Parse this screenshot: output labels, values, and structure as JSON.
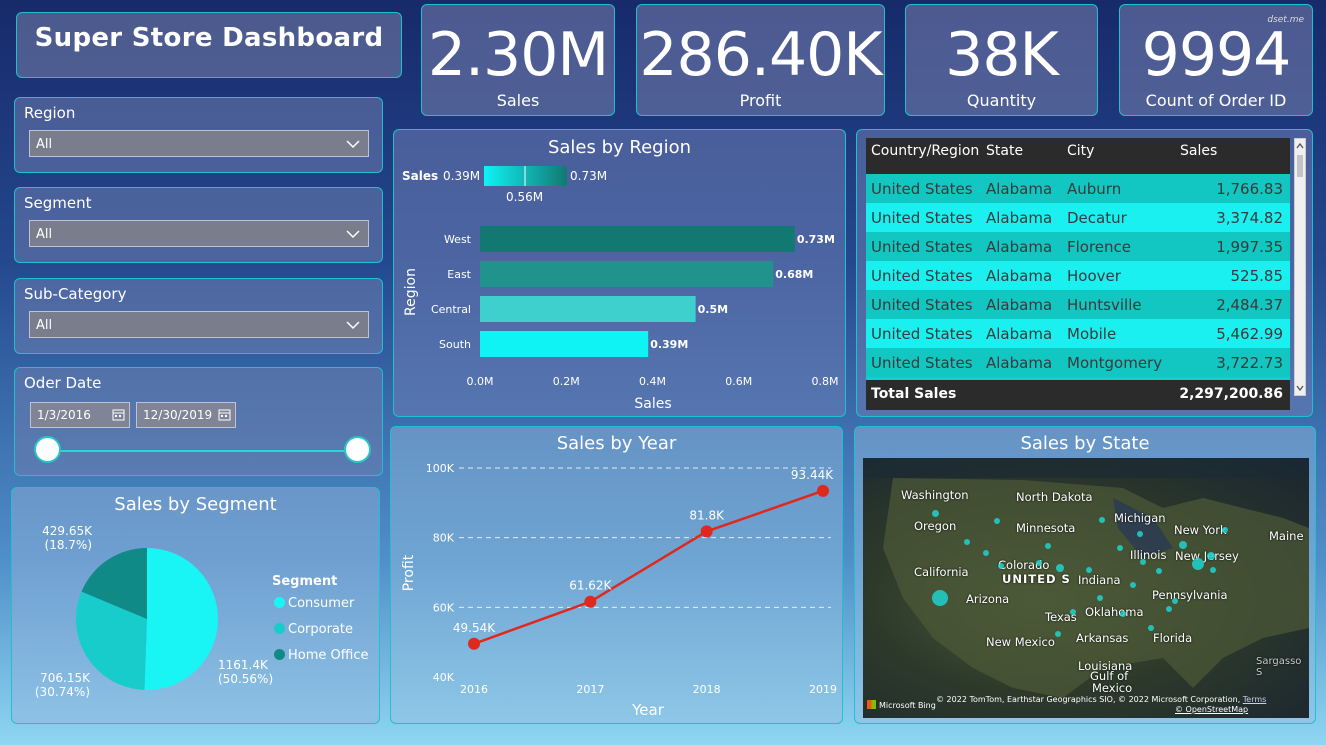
{
  "title": "Super Store Dashboard",
  "watermark": "dset.me",
  "kpis": [
    {
      "value": "2.30M",
      "label": "Sales"
    },
    {
      "value": "286.40K",
      "label": "Profit"
    },
    {
      "value": "38K",
      "label": "Quantity"
    },
    {
      "value": "9994",
      "label": "Count of Order ID"
    }
  ],
  "slicers": {
    "region": {
      "label": "Region",
      "value": "All"
    },
    "segment": {
      "label": "Segment",
      "value": "All"
    },
    "subcategory": {
      "label": "Sub-Category",
      "value": "All"
    },
    "order_date": {
      "label": "Oder Date",
      "start": "1/3/2016",
      "end": "12/30/2019"
    }
  },
  "colors": {
    "accent": "#1fc0cf",
    "line": "#e0281c",
    "table_row_a": "#12c6c1",
    "table_row_b": "#1af0f0"
  },
  "chart_data": [
    {
      "type": "bar",
      "orientation": "horizontal",
      "title": "Sales by Region",
      "categories": [
        "West",
        "East",
        "Central",
        "South"
      ],
      "values": [
        0.73,
        0.68,
        0.5,
        0.39
      ],
      "data_labels": [
        "0.73M",
        "0.68M",
        "0.5M",
        "0.39M"
      ],
      "colors": [
        "#127872",
        "#22928d",
        "#3ed0cc",
        "#0ff3f5"
      ],
      "xlabel": "Sales",
      "ylabel": "Region",
      "xlim": [
        0,
        0.8
      ],
      "xticks": [
        "0.0M",
        "0.2M",
        "0.4M",
        "0.6M",
        "0.8M"
      ],
      "gradient_legend": {
        "label": "Sales",
        "min": "0.39M",
        "max": "0.73M",
        "mid": "0.56M"
      }
    },
    {
      "type": "line",
      "title": "Sales by Year",
      "x": [
        2016,
        2017,
        2018,
        2019
      ],
      "values": [
        49.54,
        61.62,
        81.8,
        93.44
      ],
      "data_labels": [
        "49.54K",
        "61.62K",
        "81.8K",
        "93.44K"
      ],
      "xlabel": "Year",
      "ylabel": "Profit",
      "ylim": [
        40,
        100
      ],
      "yticks": [
        "40K",
        "60K",
        "80K",
        "100K"
      ],
      "grid": true
    },
    {
      "type": "pie",
      "title": "Sales by Segment",
      "categories": [
        "Consumer",
        "Corporate",
        "Home Office"
      ],
      "values": [
        1161.4,
        706.15,
        429.65
      ],
      "data_labels": [
        {
          "value": "1161.4K",
          "pct": "(50.56%)"
        },
        {
          "value": "706.15K",
          "pct": "(30.74%)"
        },
        {
          "value": "429.65K",
          "pct": "(18.7%)"
        }
      ],
      "legend_title": "Segment",
      "legend_position": "right",
      "colors": [
        "#19f5f5",
        "#19cccc",
        "#0f8a86"
      ]
    },
    {
      "type": "table",
      "title": "",
      "columns": [
        "Country/Region",
        "State",
        "City",
        "Sales"
      ],
      "rows": [
        [
          "United States",
          "Alabama",
          "Auburn",
          "1,766.83"
        ],
        [
          "United States",
          "Alabama",
          "Decatur",
          "3,374.82"
        ],
        [
          "United States",
          "Alabama",
          "Florence",
          "1,997.35"
        ],
        [
          "United States",
          "Alabama",
          "Hoover",
          "525.85"
        ],
        [
          "United States",
          "Alabama",
          "Huntsville",
          "2,484.37"
        ],
        [
          "United States",
          "Alabama",
          "Mobile",
          "5,462.99"
        ],
        [
          "United States",
          "Alabama",
          "Montgomery",
          "3,722.73"
        ]
      ],
      "total_label": "Total Sales",
      "total_value": "2,297,200.86"
    }
  ],
  "map": {
    "title": "Sales by State",
    "labels": [
      "Washington",
      "North Dakota",
      "Oregon",
      "Minnesota",
      "Michigan",
      "New York",
      "Maine",
      "Illinois",
      "New Jersey",
      "California",
      "Colorado",
      "UNITED S",
      "Indiana",
      "Arizona",
      "Pennsylvania",
      "Texas",
      "Oklahoma",
      "New Mexico",
      "Arkansas",
      "Florida",
      "Louisiana",
      "Gulf of",
      "Mexico",
      "Sargasso S"
    ],
    "attribution": "© 2022 TomTom, Earthstar Geographics SIO, © 2022 Microsoft Corporation,",
    "terms": "Terms",
    "osm": "© OpenStreetMap",
    "brand": "Microsoft Bing"
  }
}
